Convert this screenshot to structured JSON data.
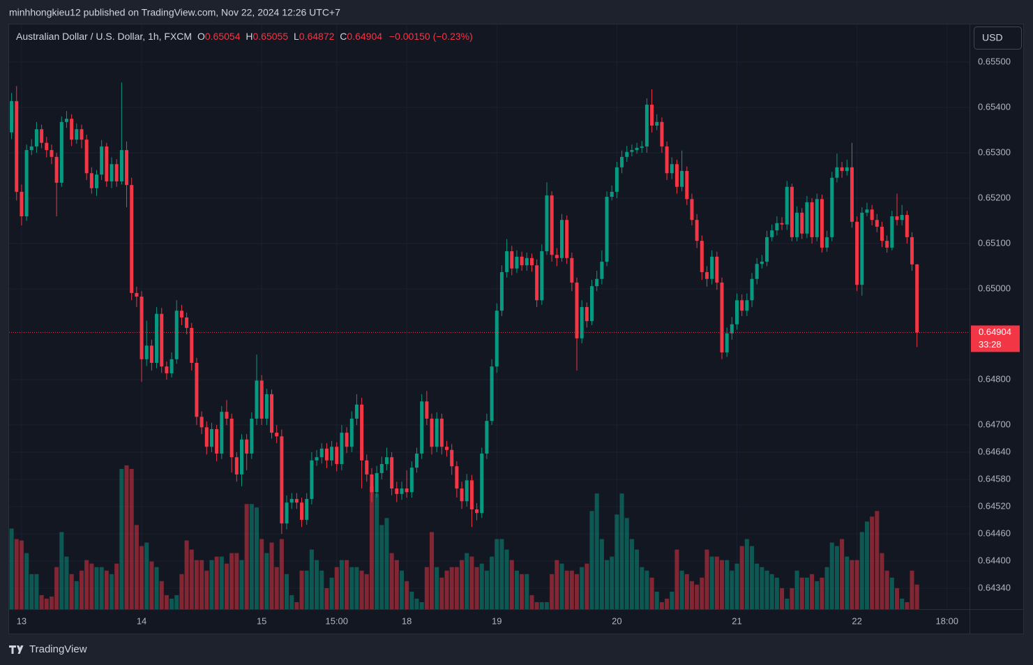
{
  "header": {
    "byline": "minhhongkieu12 published on TradingView.com, Nov 22, 2024 12:26 UTC+7"
  },
  "footer": {
    "brand": "TradingView"
  },
  "chart_data": {
    "type": "candlestick",
    "legend": {
      "symbol": "Australian Dollar / U.S. Dollar, 1h, FXCM",
      "open_label": "O",
      "high_label": "H",
      "low_label": "L",
      "close_label": "C",
      "change": "−0.00150 (−0.23%)"
    },
    "currency": "USD",
    "countdown": "33:28",
    "colors": {
      "up": "#089981",
      "down": "#f23645"
    },
    "grid": true,
    "ylim": [
      0.64294,
      0.65583
    ],
    "yticks": [
      {
        "value": 0.655,
        "label": "0.65500"
      },
      {
        "value": 0.654,
        "label": "0.65400"
      },
      {
        "value": 0.653,
        "label": "0.65300"
      },
      {
        "value": 0.652,
        "label": "0.65200"
      },
      {
        "value": 0.651,
        "label": "0.65100"
      },
      {
        "value": 0.65,
        "label": "0.65000"
      },
      {
        "value": 0.648,
        "label": "0.64800"
      },
      {
        "value": 0.647,
        "label": "0.64700"
      },
      {
        "value": 0.6464,
        "label": "0.64640"
      },
      {
        "value": 0.6458,
        "label": "0.64580"
      },
      {
        "value": 0.6452,
        "label": "0.64520"
      },
      {
        "value": 0.6446,
        "label": "0.64460"
      },
      {
        "value": 0.644,
        "label": "0.64400"
      },
      {
        "value": 0.6434,
        "label": "0.64340"
      }
    ],
    "xlim": [
      -0.5,
      191.5
    ],
    "xticks": [
      {
        "value": 2,
        "label": "13"
      },
      {
        "value": 26,
        "label": "14"
      },
      {
        "value": 50,
        "label": "15"
      },
      {
        "value": 65,
        "label": "15:00"
      },
      {
        "value": 79,
        "label": "18"
      },
      {
        "value": 97,
        "label": "19"
      },
      {
        "value": 121,
        "label": "20"
      },
      {
        "value": 145,
        "label": "21"
      },
      {
        "value": 169,
        "label": "22"
      },
      {
        "value": 187,
        "label": "18:00"
      }
    ],
    "open": [
      0.65345,
      0.65414,
      0.65214,
      0.6516,
      0.65306,
      0.65314,
      0.65352,
      0.65322,
      0.65306,
      0.65291,
      0.65234,
      0.65368,
      0.65375,
      0.65329,
      0.65352,
      0.65329,
      0.65255,
      0.65222,
      0.65252,
      0.65314,
      0.65237,
      0.65275,
      0.65237,
      0.65306,
      0.65229,
      0.64991,
      0.64983,
      0.64845,
      0.64875,
      0.64837,
      0.64945,
      0.64829,
      0.64814,
      0.64845,
      0.64952,
      0.64937,
      0.64914,
      0.64837,
      0.64718,
      0.64695,
      0.64652,
      0.64691,
      0.64637,
      0.64729,
      0.64714,
      0.64629,
      0.64591,
      0.64668,
      0.64637,
      0.64714,
      0.64798,
      0.64714,
      0.64768,
      0.64683,
      0.64675,
      0.64483,
      0.64529,
      0.64537,
      0.64529,
      0.64491,
      0.64537,
      0.64622,
      0.64629,
      0.64648,
      0.64622,
      0.64652,
      0.64614,
      0.64683,
      0.64652,
      0.64714,
      0.64745,
      0.64622,
      0.64591,
      0.64552,
      0.64594,
      0.64614,
      0.64629,
      0.6456,
      0.64548,
      0.6456,
      0.64552,
      0.64606,
      0.64637,
      0.64752,
      0.64714,
      0.64652,
      0.64714,
      0.64652,
      0.64645,
      0.64609,
      0.6456,
      0.64532,
      0.64578,
      0.64514,
      0.64506,
      0.64637,
      0.64709,
      0.64829,
      0.64952,
      0.65037,
      0.65083,
      0.65045,
      0.65071,
      0.65052,
      0.65068,
      0.65052,
      0.64975,
      0.65083,
      0.65206,
      0.65075,
      0.65068,
      0.65152,
      0.65068,
      0.65014,
      0.64891,
      0.6496,
      0.64929,
      0.65006,
      0.65022,
      0.6506,
      0.65203,
      0.65214,
      0.65268,
      0.65291,
      0.65302,
      0.65306,
      0.65311,
      0.65314,
      0.65406,
      0.6536,
      0.65368,
      0.65314,
      0.65255,
      0.65275,
      0.65225,
      0.6526,
      0.65198,
      0.65152,
      0.65106,
      0.65037,
      0.65022,
      0.65071,
      0.65014,
      0.6486,
      0.64902,
      0.64922,
      0.64975,
      0.64952,
      0.64975,
      0.65022,
      0.65055,
      0.6506,
      0.65114,
      0.65129,
      0.65145,
      0.65142,
      0.65225,
      0.65114,
      0.65168,
      0.65122,
      0.65191,
      0.65114,
      0.65198,
      0.65091,
      0.65114,
      0.65245,
      0.65268,
      0.6526,
      0.65268,
      0.65148,
      0.65009,
      0.65168,
      0.65175,
      0.65152,
      0.65137,
      0.65106,
      0.65091,
      0.6516,
      0.65152,
      0.65163,
      0.65114,
      0.65054
    ],
    "high": [
      0.65432,
      0.65447,
      0.6523,
      0.65318,
      0.6533,
      0.65368,
      0.65362,
      0.65335,
      0.65318,
      0.653,
      0.6538,
      0.65392,
      0.65385,
      0.65365,
      0.65362,
      0.6534,
      0.65268,
      0.65262,
      0.65328,
      0.65322,
      0.6529,
      0.65286,
      0.65455,
      0.65325,
      0.65245,
      0.65005,
      0.64995,
      0.6493,
      0.64888,
      0.6496,
      0.64958,
      0.6484,
      0.6486,
      0.64975,
      0.64965,
      0.64948,
      0.64925,
      0.64848,
      0.6473,
      0.64708,
      0.64705,
      0.647,
      0.64742,
      0.64755,
      0.64725,
      0.6464,
      0.6468,
      0.6468,
      0.64728,
      0.64855,
      0.6481,
      0.6478,
      0.64778,
      0.647,
      0.6469,
      0.64545,
      0.6455,
      0.6455,
      0.6454,
      0.6455,
      0.6464,
      0.64645,
      0.6466,
      0.6466,
      0.64665,
      0.64662,
      0.647,
      0.64695,
      0.6473,
      0.64768,
      0.6476,
      0.64635,
      0.64605,
      0.6461,
      0.6463,
      0.6465,
      0.6464,
      0.64575,
      0.64575,
      0.646,
      0.6462,
      0.6465,
      0.64768,
      0.64775,
      0.64725,
      0.64728,
      0.64725,
      0.64665,
      0.64658,
      0.6462,
      0.64575,
      0.64592,
      0.6459,
      0.64528,
      0.6465,
      0.64725,
      0.64845,
      0.64968,
      0.65052,
      0.6511,
      0.65095,
      0.65085,
      0.65082,
      0.6508,
      0.65078,
      0.65065,
      0.65098,
      0.65235,
      0.65215,
      0.6509,
      0.65165,
      0.65162,
      0.6508,
      0.65025,
      0.64975,
      0.6497,
      0.6502,
      0.6504,
      0.65085,
      0.65215,
      0.65228,
      0.6528,
      0.65305,
      0.65315,
      0.65318,
      0.65322,
      0.65326,
      0.6542,
      0.6544,
      0.65385,
      0.65378,
      0.65325,
      0.6529,
      0.65285,
      0.65305,
      0.6527,
      0.6521,
      0.65165,
      0.65118,
      0.6505,
      0.65085,
      0.65082,
      0.65025,
      0.64915,
      0.64938,
      0.6499,
      0.64988,
      0.6499,
      0.65035,
      0.65068,
      0.65075,
      0.65128,
      0.65142,
      0.6516,
      0.65158,
      0.65238,
      0.65232,
      0.65182,
      0.65178,
      0.65205,
      0.652,
      0.6521,
      0.65208,
      0.65128,
      0.65258,
      0.65298,
      0.6528,
      0.65285,
      0.65322,
      0.6516,
      0.6518,
      0.6519,
      0.65185,
      0.65165,
      0.65148,
      0.65118,
      0.65172,
      0.6521,
      0.65185,
      0.65172,
      0.65125,
      0.65055
    ],
    "low": [
      0.6533,
      0.65195,
      0.6514,
      0.6515,
      0.65295,
      0.653,
      0.6531,
      0.6529,
      0.65275,
      0.6516,
      0.65225,
      0.65355,
      0.65315,
      0.6532,
      0.6531,
      0.6524,
      0.6521,
      0.65205,
      0.6524,
      0.65225,
      0.65222,
      0.65225,
      0.6523,
      0.6518,
      0.64975,
      0.6496,
      0.64795,
      0.6483,
      0.6482,
      0.64825,
      0.64815,
      0.648,
      0.64805,
      0.64835,
      0.6492,
      0.649,
      0.6482,
      0.647,
      0.6468,
      0.64635,
      0.6464,
      0.6462,
      0.64625,
      0.647,
      0.64595,
      0.64575,
      0.64565,
      0.646,
      0.64625,
      0.647,
      0.647,
      0.647,
      0.6467,
      0.6466,
      0.6446,
      0.6447,
      0.64515,
      0.64515,
      0.64475,
      0.6448,
      0.64525,
      0.6461,
      0.64615,
      0.64605,
      0.6461,
      0.64598,
      0.646,
      0.64638,
      0.6464,
      0.647,
      0.6456,
      0.64575,
      0.6453,
      0.6454,
      0.6458,
      0.646,
      0.64545,
      0.6453,
      0.64535,
      0.6454,
      0.6454,
      0.64595,
      0.64625,
      0.647,
      0.64635,
      0.6464,
      0.64635,
      0.6463,
      0.6459,
      0.6454,
      0.64515,
      0.6452,
      0.64475,
      0.6449,
      0.64495,
      0.64625,
      0.647,
      0.64815,
      0.6494,
      0.65025,
      0.6503,
      0.65035,
      0.6504,
      0.6504,
      0.65038,
      0.6496,
      0.64965,
      0.65075,
      0.6506,
      0.6505,
      0.6506,
      0.65055,
      0.64995,
      0.6482,
      0.6488,
      0.64915,
      0.6492,
      0.64995,
      0.6501,
      0.6505,
      0.65195,
      0.652,
      0.65255,
      0.6528,
      0.65292,
      0.65298,
      0.653,
      0.653,
      0.65345,
      0.6535,
      0.653,
      0.6524,
      0.65242,
      0.6521,
      0.65215,
      0.65185,
      0.6514,
      0.6509,
      0.6502,
      0.65005,
      0.6501,
      0.64998,
      0.64845,
      0.6485,
      0.64888,
      0.6491,
      0.6494,
      0.6494,
      0.6496,
      0.6501,
      0.65045,
      0.6505,
      0.65105,
      0.65118,
      0.6513,
      0.6513,
      0.65105,
      0.65105,
      0.6511,
      0.65112,
      0.651,
      0.65105,
      0.6508,
      0.65082,
      0.65105,
      0.65235,
      0.65245,
      0.6525,
      0.65135,
      0.64995,
      0.64985,
      0.6516,
      0.6514,
      0.65125,
      0.65092,
      0.6508,
      0.65085,
      0.6514,
      0.6514,
      0.651,
      0.6504,
      0.64872
    ],
    "close": [
      0.65414,
      0.65214,
      0.6516,
      0.65306,
      0.65314,
      0.65352,
      0.65322,
      0.65306,
      0.65291,
      0.65234,
      0.65368,
      0.65375,
      0.65329,
      0.65352,
      0.65329,
      0.65255,
      0.65222,
      0.65252,
      0.65314,
      0.65237,
      0.65275,
      0.65237,
      0.65306,
      0.65229,
      0.64991,
      0.64983,
      0.64845,
      0.64875,
      0.64837,
      0.64945,
      0.64829,
      0.64814,
      0.64845,
      0.64952,
      0.64937,
      0.64914,
      0.64837,
      0.64718,
      0.64695,
      0.64652,
      0.64691,
      0.64637,
      0.64729,
      0.64714,
      0.64629,
      0.64591,
      0.64668,
      0.64637,
      0.64714,
      0.64798,
      0.64714,
      0.64768,
      0.64683,
      0.64675,
      0.64483,
      0.64529,
      0.64537,
      0.64529,
      0.64491,
      0.64537,
      0.64622,
      0.64629,
      0.64648,
      0.64622,
      0.64652,
      0.64614,
      0.64683,
      0.64652,
      0.64714,
      0.64745,
      0.64622,
      0.64591,
      0.64552,
      0.64594,
      0.64614,
      0.64629,
      0.6456,
      0.64548,
      0.6456,
      0.64552,
      0.64606,
      0.64637,
      0.64752,
      0.64714,
      0.64652,
      0.64714,
      0.64652,
      0.64645,
      0.64609,
      0.6456,
      0.64532,
      0.64578,
      0.64514,
      0.64506,
      0.64637,
      0.64709,
      0.64829,
      0.64952,
      0.65037,
      0.65083,
      0.65045,
      0.65071,
      0.65052,
      0.65068,
      0.65052,
      0.64975,
      0.65083,
      0.65206,
      0.65075,
      0.65068,
      0.65152,
      0.65068,
      0.65014,
      0.64891,
      0.6496,
      0.64929,
      0.65006,
      0.65022,
      0.6506,
      0.65203,
      0.65214,
      0.65268,
      0.65291,
      0.65302,
      0.65306,
      0.65311,
      0.65314,
      0.65406,
      0.6536,
      0.65368,
      0.65314,
      0.65255,
      0.65275,
      0.65225,
      0.6526,
      0.65198,
      0.65152,
      0.65106,
      0.65037,
      0.65022,
      0.65071,
      0.65014,
      0.6486,
      0.64902,
      0.64922,
      0.64975,
      0.64952,
      0.64975,
      0.65022,
      0.65055,
      0.6506,
      0.65114,
      0.65129,
      0.65145,
      0.65142,
      0.65225,
      0.65114,
      0.65168,
      0.65122,
      0.65191,
      0.65114,
      0.65198,
      0.65091,
      0.65114,
      0.65245,
      0.65268,
      0.6526,
      0.65268,
      0.65148,
      0.65009,
      0.65168,
      0.65175,
      0.65152,
      0.65137,
      0.65106,
      0.65091,
      0.6516,
      0.65152,
      0.65163,
      0.65114,
      0.65054,
      0.64904
    ],
    "volume": [
      115,
      100,
      98,
      80,
      50,
      50,
      20,
      15,
      18,
      60,
      110,
      75,
      50,
      40,
      55,
      70,
      65,
      60,
      60,
      55,
      50,
      65,
      200,
      205,
      200,
      120,
      90,
      95,
      68,
      60,
      40,
      20,
      15,
      20,
      50,
      98,
      85,
      70,
      70,
      55,
      70,
      75,
      75,
      65,
      80,
      80,
      70,
      150,
      150,
      145,
      100,
      80,
      95,
      60,
      100,
      50,
      20,
      10,
      55,
      55,
      85,
      70,
      55,
      30,
      45,
      60,
      70,
      70,
      60,
      60,
      55,
      50,
      175,
      165,
      120,
      130,
      80,
      70,
      55,
      40,
      25,
      15,
      10,
      60,
      110,
      60,
      45,
      55,
      60,
      60,
      70,
      80,
      75,
      60,
      65,
      55,
      75,
      100,
      100,
      85,
      70,
      55,
      50,
      50,
      20,
      10,
      10,
      10,
      50,
      70,
      65,
      55,
      55,
      50,
      60,
      65,
      140,
      165,
      100,
      70,
      75,
      135,
      165,
      130,
      100,
      85,
      60,
      55,
      45,
      25,
      10,
      15,
      25,
      85,
      55,
      50,
      40,
      35,
      45,
      85,
      75,
      75,
      70,
      70,
      55,
      65,
      90,
      100,
      90,
      65,
      60,
      55,
      50,
      45,
      30,
      15,
      30,
      55,
      45,
      45,
      50,
      40,
      45,
      60,
      95,
      90,
      100,
      75,
      70,
      70,
      110,
      125,
      132,
      140,
      80,
      55,
      45,
      30,
      15,
      10,
      55,
      35
    ]
  }
}
